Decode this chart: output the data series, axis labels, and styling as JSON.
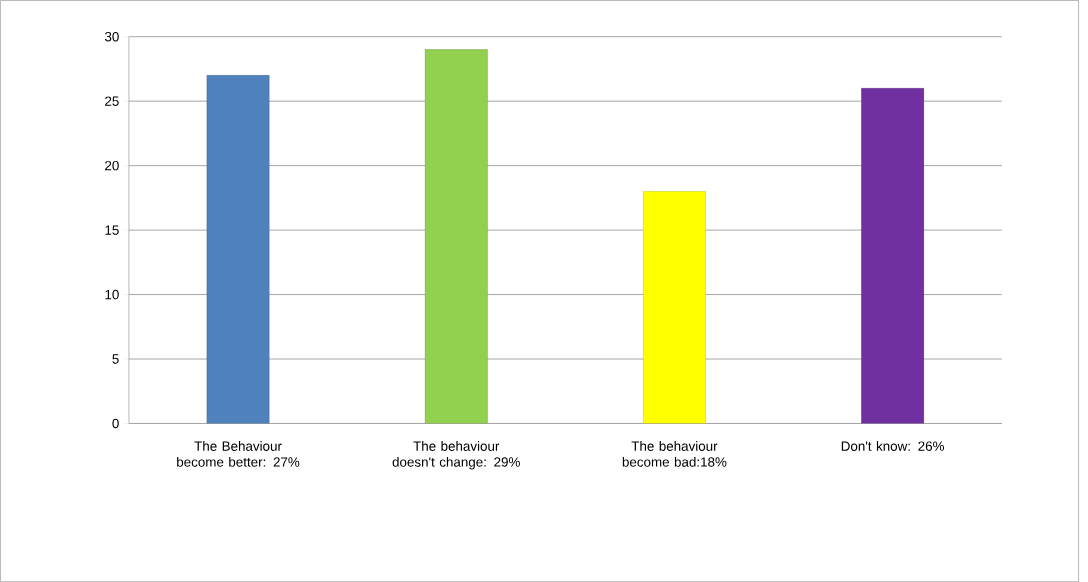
{
  "chart_data": {
    "type": "bar",
    "categories": [
      "The Behaviour become better: 27%",
      "The behaviour doesn't change: 29%",
      "The behaviour become bad:18%",
      "Don't know: 26%"
    ],
    "values": [
      27,
      29,
      18,
      26
    ],
    "colors": [
      "#4f81bd",
      "#92d050",
      "#ffff00",
      "#7030a0"
    ],
    "ylim": [
      0,
      30
    ],
    "yticks": [
      0,
      5,
      10,
      15,
      20,
      25,
      30
    ],
    "grid": "y"
  }
}
